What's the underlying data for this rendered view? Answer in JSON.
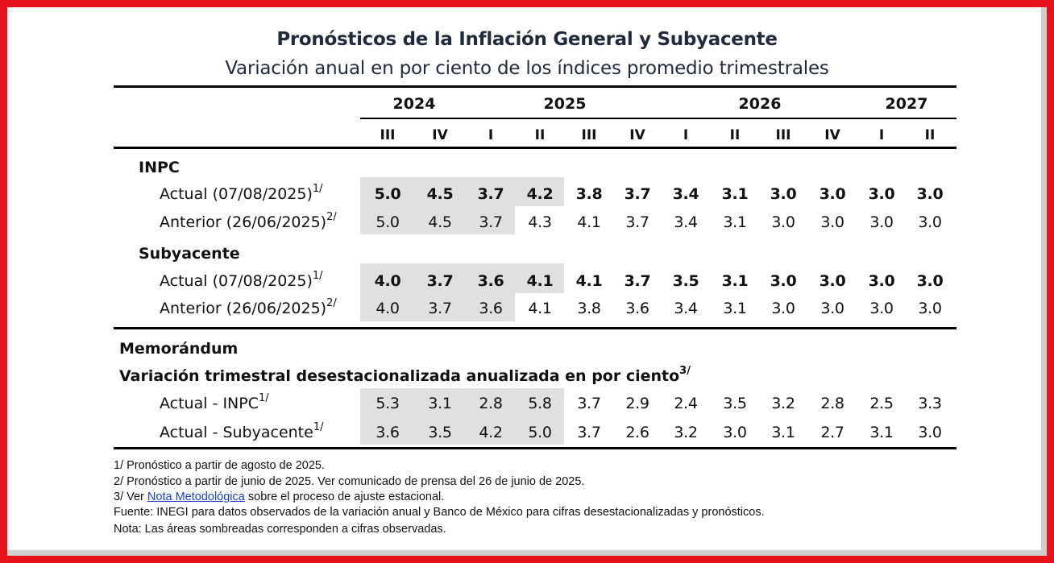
{
  "title": "Pronósticos de la Inflación General y Subyacente",
  "subtitle": "Variación anual en por ciento de los índices promedio trimestrales",
  "years": [
    "2024",
    "2025",
    "2026",
    "2027"
  ],
  "quarters": [
    "III",
    "IV",
    "I",
    "II",
    "III",
    "IV",
    "I",
    "II",
    "III",
    "IV",
    "I",
    "II"
  ],
  "sections": {
    "inpc": "INPC",
    "subyacente": "Subyacente",
    "memorandum": "Memorándum",
    "variacion": "Variación trimestral desestacionalizada anualizada en por ciento",
    "variacion_note": "3/"
  },
  "rows": [
    {
      "label": "Actual (07/08/2025)",
      "note": "1/",
      "bold": true,
      "values": [
        "5.0",
        "4.5",
        "3.7",
        "4.2",
        "3.8",
        "3.7",
        "3.4",
        "3.1",
        "3.0",
        "3.0",
        "3.0",
        "3.0"
      ]
    },
    {
      "label": "Anterior (26/06/2025)",
      "note": "2/",
      "bold": false,
      "values": [
        "5.0",
        "4.5",
        "3.7",
        "4.3",
        "4.1",
        "3.7",
        "3.4",
        "3.1",
        "3.0",
        "3.0",
        "3.0",
        "3.0"
      ]
    },
    {
      "label": "Actual (07/08/2025)",
      "note": "1/",
      "bold": true,
      "values": [
        "4.0",
        "3.7",
        "3.6",
        "4.1",
        "4.1",
        "3.7",
        "3.5",
        "3.1",
        "3.0",
        "3.0",
        "3.0",
        "3.0"
      ]
    },
    {
      "label": "Anterior (26/06/2025)",
      "note": "2/",
      "bold": false,
      "values": [
        "4.0",
        "3.7",
        "3.6",
        "4.1",
        "3.8",
        "3.6",
        "3.4",
        "3.1",
        "3.0",
        "3.0",
        "3.0",
        "3.0"
      ]
    },
    {
      "label": "Actual - INPC",
      "note": "1/",
      "bold": false,
      "values": [
        "5.3",
        "3.1",
        "2.8",
        "5.8",
        "3.7",
        "2.9",
        "2.4",
        "3.5",
        "3.2",
        "2.8",
        "2.5",
        "3.3"
      ]
    },
    {
      "label": "Actual - Subyacente",
      "note": "1/",
      "bold": false,
      "values": [
        "3.6",
        "3.5",
        "4.2",
        "5.0",
        "3.7",
        "2.6",
        "3.2",
        "3.0",
        "3.1",
        "2.7",
        "3.1",
        "3.0"
      ]
    }
  ],
  "footnotes": {
    "f1": "1/ Pronóstico a partir de agosto de 2025.",
    "f2": "2/ Pronóstico a partir de junio de 2025. Ver comunicado de prensa del 26 de junio de 2025.",
    "f3_prefix": "3/ Ver",
    "f3_link": "Nota Metodológica",
    "f3_suffix": "sobre el proceso de ajuste estacional.",
    "fuente": "Fuente: INEGI para datos observados de la variación anual y Banco de México para cifras desestacionalizadas y pronósticos.",
    "nota": "Nota: Las áreas sombreadas corresponden a cifras observadas."
  },
  "colors": {
    "frame": "#e8141b",
    "shade": "#e0e0e0",
    "link": "#1a3fd6"
  }
}
